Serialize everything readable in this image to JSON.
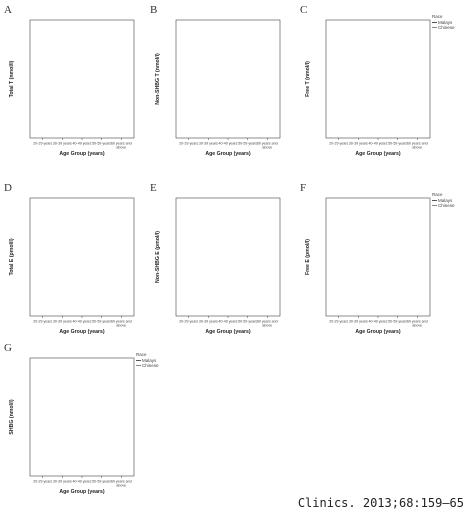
{
  "citation": "Clinics. 2013;68:159–65",
  "colors": {
    "solid_series": "#555555",
    "dashed_series": "#999999",
    "axis": "#444444"
  },
  "chart_data": [
    {
      "panel": "A",
      "type": "line",
      "ylabel": "Total T (nmol/l)",
      "xlabel": "Age Group (years)",
      "categories": [
        "20-29 years",
        "30-39 years",
        "40-49 years",
        "50-59 years",
        "60 years and above"
      ],
      "grid": false,
      "legend": null
    },
    {
      "panel": "B",
      "type": "line",
      "ylabel": "Non-SHBG T (nmol/l)",
      "xlabel": "Age Group (years)",
      "categories": [
        "20-29 years",
        "30-39 years",
        "40-49 years",
        "50-59 years",
        "60 years and above"
      ],
      "grid": false,
      "legend": null
    },
    {
      "panel": "C",
      "type": "line",
      "ylabel": "Free T (nmol/l)",
      "xlabel": "Age Group (years)",
      "categories": [
        "20-29 years",
        "30-39 years",
        "40-49 years",
        "50-59 years",
        "60 years and above"
      ],
      "grid": false,
      "legend": {
        "title": "Race",
        "placement": "top-right",
        "entries": [
          "Malays",
          "Chinese"
        ]
      }
    },
    {
      "panel": "D",
      "type": "line",
      "ylabel": "Total E (pmol/l)",
      "xlabel": "Age Group (years)",
      "categories": [
        "20-29 years",
        "30-39 years",
        "40-49 years",
        "50-59 years",
        "60 years and above"
      ],
      "grid": false,
      "legend": null
    },
    {
      "panel": "E",
      "type": "line",
      "ylabel": "Non-SHBG E (pmol/l)",
      "xlabel": "Age Group (years)",
      "categories": [
        "20-29 years",
        "30-39 years",
        "40-49 years",
        "50-59 years",
        "60 years and above"
      ],
      "grid": false,
      "legend": null
    },
    {
      "panel": "F",
      "type": "line",
      "ylabel": "Free E (pmol/l)",
      "xlabel": "Age Group (years)",
      "categories": [
        "20-29 years",
        "30-39 years",
        "40-49 years",
        "50-59 years",
        "60 years and above"
      ],
      "grid": false,
      "legend": {
        "title": "Race",
        "placement": "top-right",
        "entries": [
          "Malays",
          "Chinese"
        ]
      }
    },
    {
      "panel": "G",
      "type": "line",
      "ylabel": "SHBG (nmol/l)",
      "xlabel": "Age Group (years)",
      "categories": [
        "20-29 years",
        "30-39 years",
        "40-49 years",
        "50-59 years",
        "60 years and above"
      ],
      "grid": false,
      "legend": {
        "title": "Race",
        "placement": "top-right",
        "entries": [
          "Malays",
          "Chinese"
        ]
      }
    }
  ]
}
